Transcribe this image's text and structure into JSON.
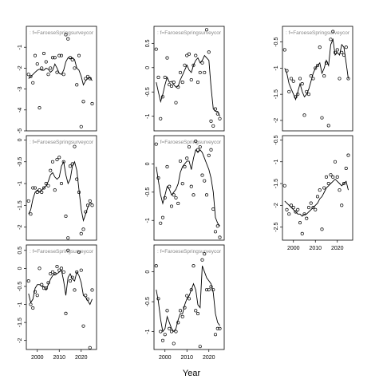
{
  "figure": {
    "xlabel": "Year"
  },
  "chart_data": [
    {
      "type": "scatter",
      "panel_label": "f=FaroeseSpringsurveycor",
      "xlim": [
        1995,
        2027
      ],
      "ylim": [
        -5,
        0
      ],
      "yticks": [
        -5,
        -4,
        -3,
        -2,
        -1
      ],
      "xticks": [],
      "line": true,
      "x": [
        1996,
        1997,
        1998,
        1999,
        2000,
        2001,
        2002,
        2003,
        2004,
        2005,
        2006,
        2007,
        2008,
        2009,
        2010,
        2011,
        2012,
        2013,
        2014,
        2015,
        2016,
        2017,
        2018,
        2019,
        2020,
        2021,
        2022,
        2023,
        2024,
        2025
      ],
      "y": [
        -2.3,
        -2.4,
        -2.7,
        -1.4,
        -1.8,
        -3.9,
        -2.0,
        -1.3,
        -1.7,
        -2.3,
        -2.0,
        -1.5,
        -1.5,
        -2.2,
        -1.4,
        -1.4,
        -2.3,
        -0.4,
        -0.6,
        -1.5,
        -1.6,
        -2.0,
        -2.8,
        -1.4,
        -4.8,
        -3.6,
        -2.5,
        -2.4,
        -2.5,
        -3.7
      ],
      "fit": [
        -2.5,
        -2.4,
        -2.3,
        -2.2,
        -2.1,
        -2.05,
        -2.1,
        -2.1,
        -2.0,
        -2.05,
        -2.2,
        -2.1,
        -1.8,
        -2.0,
        -2.25,
        -2.3,
        -2.1,
        -1.7,
        -1.5,
        -1.55,
        -1.5,
        -1.6,
        -2.0,
        -2.1,
        -2.4,
        -2.8,
        -2.6,
        -2.5,
        -2.45,
        -2.6
      ]
    },
    {
      "type": "scatter",
      "panel_label": "f=FaroeseSpringsurveycor",
      "xlim": [
        1995,
        2027
      ],
      "ylim": [
        -1.3,
        0.85
      ],
      "yticks": [
        -1.0,
        -0.5,
        0.0,
        0.5
      ],
      "xticks": [],
      "line": true,
      "x": [
        1996,
        1997,
        1998,
        1999,
        2000,
        2001,
        2002,
        2003,
        2004,
        2005,
        2006,
        2007,
        2008,
        2009,
        2010,
        2011,
        2012,
        2013,
        2014,
        2015,
        2016,
        2017,
        2018,
        2019,
        2020,
        2021,
        2022,
        2023,
        2024,
        2025
      ],
      "y": [
        0.38,
        -0.2,
        -1.05,
        -0.6,
        -0.2,
        0.2,
        -0.35,
        -0.38,
        -0.3,
        -0.72,
        -0.4,
        -0.1,
        -0.3,
        0.05,
        0.25,
        0.28,
        -0.25,
        0.05,
        0.25,
        -0.3,
        -0.1,
        0.1,
        -0.1,
        0.78,
        0.32,
        -1.1,
        -1.2,
        -0.85,
        -0.95,
        -1.05
      ],
      "fit": [
        -0.3,
        -0.5,
        -0.7,
        -0.55,
        -0.35,
        -0.2,
        -0.3,
        -0.28,
        -0.35,
        -0.4,
        -0.38,
        -0.25,
        -0.15,
        -0.05,
        0.05,
        -0.05,
        -0.1,
        0.05,
        0.15,
        0.2,
        0.1,
        0.15,
        0.25,
        0.2,
        0.15,
        -0.4,
        -0.85,
        -0.9,
        -0.9,
        -1.0
      ]
    },
    {
      "type": "scatter",
      "panel_label": "f=FaroeseSpringsurveycor",
      "xlim": [
        1995,
        2027
      ],
      "ylim": [
        -2.2,
        -0.2
      ],
      "yticks": [
        -2.0,
        -1.5,
        -1.0,
        -0.5
      ],
      "xticks": [],
      "line": true,
      "x": [
        1996,
        1997,
        1998,
        1999,
        2000,
        2001,
        2002,
        2003,
        2004,
        2005,
        2006,
        2007,
        2008,
        2009,
        2010,
        2011,
        2012,
        2013,
        2014,
        2015,
        2016,
        2017,
        2018,
        2019,
        2020,
        2021,
        2022,
        2023,
        2024,
        2025
      ],
      "y": [
        -0.65,
        -1.05,
        -1.45,
        -1.2,
        -1.25,
        -1.55,
        -1.5,
        -1.2,
        -1.3,
        -1.9,
        -1.45,
        -1.5,
        -1.15,
        -1.2,
        -1.0,
        -0.95,
        -0.6,
        -1.95,
        -1.15,
        -0.9,
        -2.1,
        -0.45,
        -0.3,
        -0.7,
        -0.65,
        -1.2,
        -0.7,
        -0.75,
        -0.6,
        -1.2
      ],
      "fit": [
        -1.0,
        -1.1,
        -1.3,
        -1.4,
        -1.5,
        -1.6,
        -1.45,
        -1.3,
        -1.45,
        -1.55,
        -1.5,
        -1.4,
        -1.25,
        -1.1,
        -1.0,
        -0.95,
        -0.9,
        -1.1,
        -1.0,
        -0.85,
        -0.95,
        -0.55,
        -0.45,
        -0.75,
        -0.7,
        -0.75,
        -0.55,
        -0.6,
        -0.9,
        -1.2
      ]
    },
    {
      "type": "scatter",
      "panel_label": "f=FaroeseSpringsurveycor",
      "xlim": [
        1995,
        2027
      ],
      "ylim": [
        -2.3,
        0.1
      ],
      "yticks": [
        -2.0,
        -1.5,
        -1.0,
        -0.5,
        0.0
      ],
      "xticks": [],
      "line": true,
      "x": [
        1996,
        1997,
        1998,
        1999,
        2000,
        2001,
        2002,
        2003,
        2004,
        2005,
        2006,
        2007,
        2008,
        2009,
        2010,
        2011,
        2012,
        2013,
        2014,
        2015,
        2016,
        2017,
        2018,
        2019,
        2020,
        2021,
        2022,
        2023,
        2024,
        2025
      ],
      "y": [
        -1.4,
        -1.7,
        -1.1,
        -1.1,
        -1.2,
        -1.15,
        -1.2,
        -1.1,
        -1.0,
        -1.05,
        -0.7,
        -0.5,
        -1.15,
        -0.45,
        -0.4,
        -1.0,
        -0.5,
        -1.75,
        -2.25,
        -0.6,
        -0.55,
        -0.15,
        -0.9,
        -1.2,
        -2.15,
        -2.05,
        -1.65,
        -1.5,
        -1.4,
        -1.5
      ],
      "fit": [
        -1.7,
        -1.6,
        -1.35,
        -1.2,
        -1.15,
        -1.2,
        -1.15,
        -1.1,
        -1.05,
        -0.95,
        -0.8,
        -0.75,
        -0.85,
        -0.9,
        -0.85,
        -0.6,
        -0.5,
        -0.8,
        -1.0,
        -0.9,
        -0.6,
        -0.5,
        -0.7,
        -1.15,
        -1.6,
        -1.85,
        -1.7,
        -1.55,
        -1.45,
        -1.45
      ]
    },
    {
      "type": "scatter",
      "panel_label": "f=FaroeseSpringsurveycor",
      "xlim": [
        1995,
        2027
      ],
      "ylim": [
        -1.35,
        0.5
      ],
      "yticks": [
        -1.0,
        -0.5,
        0.0
      ],
      "xticks": [],
      "line": true,
      "x": [
        1996,
        1997,
        1998,
        1999,
        2000,
        2001,
        2002,
        2003,
        2004,
        2005,
        2006,
        2007,
        2008,
        2009,
        2010,
        2011,
        2012,
        2013,
        2014,
        2015,
        2016,
        2017,
        2018,
        2019,
        2020,
        2021,
        2022,
        2023,
        2024,
        2025
      ],
      "y": [
        0.35,
        -0.25,
        -1.05,
        -0.95,
        -0.6,
        -0.05,
        -0.4,
        -0.75,
        -0.55,
        -0.6,
        -0.7,
        0.05,
        -0.35,
        -0.05,
        0.1,
        0.3,
        -0.4,
        -0.55,
        0.4,
        0.25,
        0.3,
        -0.2,
        -0.3,
        -0.55,
        0.15,
        0.25,
        -0.8,
        -1.2,
        -1.1,
        -1.3
      ],
      "fit": [
        -0.05,
        -0.3,
        -0.55,
        -0.7,
        -0.55,
        -0.4,
        -0.45,
        -0.55,
        -0.5,
        -0.45,
        -0.35,
        -0.15,
        -0.05,
        0.0,
        0.05,
        0.05,
        -0.1,
        0.1,
        0.25,
        0.2,
        0.25,
        0.2,
        0.1,
        0.0,
        -0.1,
        -0.25,
        -0.5,
        -0.95,
        -1.05,
        -1.1
      ]
    },
    {
      "type": "scatter",
      "panel_label": "",
      "xlim": [
        1995,
        2027
      ],
      "ylim": [
        -2.8,
        -0.4
      ],
      "yticks": [
        -2.5,
        -2.0,
        -1.5,
        -1.0,
        -0.5
      ],
      "xticks": [
        2000,
        2010,
        2020
      ],
      "line": true,
      "x": [
        1996,
        1997,
        1998,
        1999,
        2000,
        2001,
        2002,
        2003,
        2004,
        2005,
        2006,
        2007,
        2008,
        2009,
        2010,
        2011,
        2012,
        2013,
        2014,
        2015,
        2016,
        2017,
        2018,
        2019,
        2020,
        2021,
        2022,
        2023,
        2024,
        2025
      ],
      "y": [
        -1.55,
        -2.1,
        -2.2,
        -2.0,
        -2.05,
        -2.15,
        -2.1,
        -2.4,
        -2.65,
        -2.2,
        -2.3,
        -2.05,
        -1.95,
        -2.05,
        -2.1,
        -1.8,
        -1.65,
        -2.55,
        -1.6,
        -1.35,
        -1.5,
        -1.3,
        -1.35,
        -1.0,
        -1.35,
        -1.65,
        -2.0,
        -1.5,
        -1.15,
        -0.85
      ],
      "fit": [
        -1.9,
        -1.95,
        -2.0,
        -2.05,
        -2.1,
        -2.15,
        -2.2,
        -2.2,
        -2.25,
        -2.2,
        -2.2,
        -2.15,
        -2.1,
        -2.05,
        -2.0,
        -1.95,
        -1.85,
        -1.8,
        -1.7,
        -1.6,
        -1.55,
        -1.5,
        -1.45,
        -1.4,
        -1.45,
        -1.5,
        -1.55,
        -1.5,
        -1.45,
        -1.65
      ]
    },
    {
      "type": "scatter",
      "panel_label": "f=FaroeseSpringsurveycor",
      "xlim": [
        1995,
        2027
      ],
      "ylim": [
        -2.25,
        0.65
      ],
      "yticks": [
        -2.0,
        -1.5,
        -1.0,
        -0.5,
        0.0,
        0.5
      ],
      "xticks": [
        2000,
        2010,
        2020
      ],
      "line": true,
      "x": [
        1996,
        1997,
        1998,
        1999,
        2000,
        2001,
        2002,
        2003,
        2004,
        2005,
        2006,
        2007,
        2008,
        2009,
        2010,
        2011,
        2012,
        2013,
        2014,
        2015,
        2016,
        2017,
        2018,
        2019,
        2020,
        2021,
        2022,
        2023,
        2024,
        2025
      ],
      "y": [
        -0.35,
        -1.0,
        -1.1,
        -0.65,
        -0.75,
        0.0,
        -0.45,
        -0.55,
        -0.55,
        -0.4,
        -0.15,
        -0.1,
        -0.15,
        0.05,
        -0.05,
        0.0,
        -0.1,
        -1.25,
        0.5,
        -0.35,
        -0.25,
        -0.6,
        -0.1,
        0.45,
        -0.05,
        -1.6,
        -0.75,
        -0.85,
        -2.2,
        -0.6
      ],
      "fit": [
        -0.7,
        -0.95,
        -0.85,
        -0.55,
        -0.45,
        -0.45,
        -0.5,
        -0.5,
        -0.6,
        -0.45,
        -0.3,
        -0.2,
        -0.15,
        -0.15,
        -0.1,
        -0.05,
        -0.35,
        -0.75,
        -0.25,
        -0.15,
        -0.3,
        -0.35,
        -0.1,
        -0.2,
        -0.4,
        -0.75,
        -0.8,
        -0.9,
        -1.0,
        -0.85
      ]
    },
    {
      "type": "scatter",
      "panel_label": "f=FaroeseSpringsurveycor",
      "xlim": [
        1995,
        2027
      ],
      "ylim": [
        -1.3,
        0.45
      ],
      "yticks": [
        -1.0,
        -0.5,
        0.0
      ],
      "xticks": [
        2000,
        2010,
        2020
      ],
      "line": true,
      "x": [
        1996,
        1997,
        1998,
        1999,
        2000,
        2001,
        2002,
        2003,
        2004,
        2005,
        2006,
        2007,
        2008,
        2009,
        2010,
        2011,
        2012,
        2013,
        2014,
        2015,
        2016,
        2017,
        2018,
        2019,
        2020,
        2021,
        2022,
        2023,
        2024,
        2025
      ],
      "y": [
        0.1,
        -0.45,
        -1.0,
        -1.15,
        -1.05,
        -0.65,
        -0.95,
        -1.0,
        -1.2,
        -1.0,
        -0.85,
        -0.65,
        -0.75,
        -0.6,
        -0.4,
        -0.45,
        -0.3,
        0.1,
        -0.65,
        -0.7,
        -1.25,
        0.2,
        0.3,
        -0.3,
        -0.3,
        -0.25,
        -0.3,
        -1.05,
        -0.95,
        -0.95
      ],
      "fit": [
        -0.3,
        -0.5,
        -0.8,
        -1.0,
        -0.95,
        -0.75,
        -0.85,
        -0.95,
        -1.0,
        -0.95,
        -0.8,
        -0.7,
        -0.7,
        -0.55,
        -0.45,
        -0.4,
        -0.3,
        -0.2,
        -0.3,
        -0.55,
        -0.6,
        0.1,
        0.0,
        -0.1,
        -0.15,
        -0.2,
        -0.35,
        -0.7,
        -0.85,
        -0.9
      ]
    }
  ]
}
